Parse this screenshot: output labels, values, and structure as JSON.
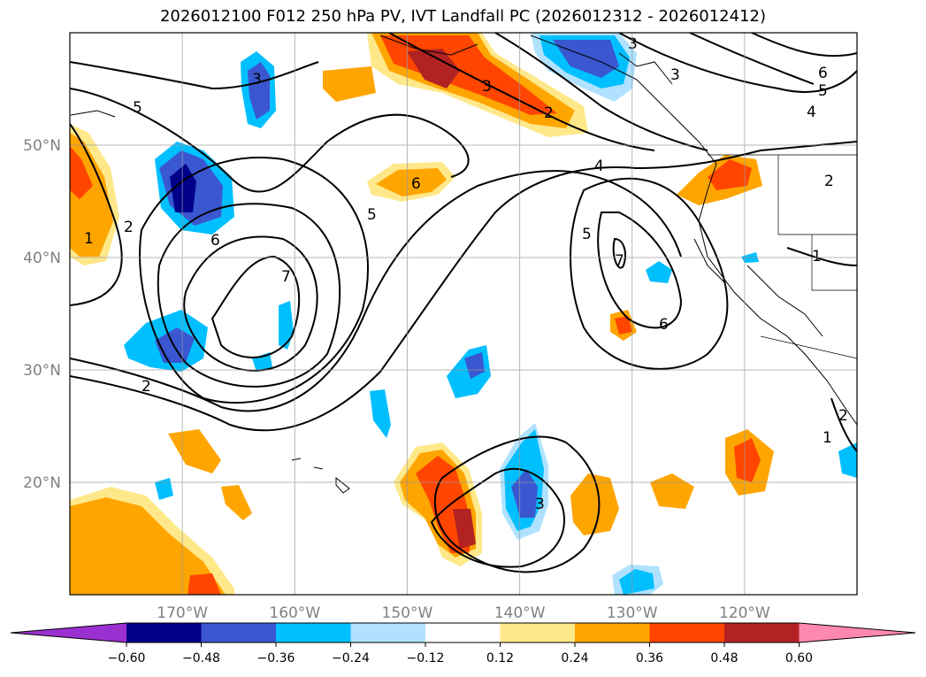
{
  "title": "2026012100 F012 250 hPa PV, IVT Landfall PC (2026012312 - 2026012412)",
  "map": {
    "lat_ticks": [
      {
        "label": "50°N",
        "lat": 50
      },
      {
        "label": "40°N",
        "lat": 40
      },
      {
        "label": "30°N",
        "lat": 30
      },
      {
        "label": "20°N",
        "lat": 20
      }
    ],
    "lon_ticks": [
      {
        "label": "170°W",
        "lon": -170
      },
      {
        "label": "160°W",
        "lon": -160
      },
      {
        "label": "150°W",
        "lon": -150
      },
      {
        "label": "140°W",
        "lon": -140
      },
      {
        "label": "130°W",
        "lon": -130
      },
      {
        "label": "120°W",
        "lon": -120
      }
    ],
    "extent": {
      "lon_min": -180,
      "lon_max": -110,
      "lat_min": 10,
      "lat_max": 60
    },
    "contour_labels": [
      "3",
      "3",
      "3",
      "2",
      "5",
      "6",
      "5",
      "4",
      "5",
      "7",
      "6",
      "2",
      "1",
      "2",
      "7",
      "6",
      "5",
      "4",
      "2",
      "1",
      "3",
      "1",
      "2",
      "6",
      "3"
    ]
  },
  "colorbar": {
    "colors": [
      "#9b30d0",
      "#00008b",
      "#3a57d0",
      "#00bfff",
      "#b0e2ff",
      "#ffffff",
      "#ffe88a",
      "#ffa500",
      "#ff4500",
      "#b22222",
      "#ff88b0"
    ],
    "tick_labels": [
      "−0.60",
      "−0.48",
      "−0.36",
      "−0.24",
      "−0.12",
      "0.12",
      "0.24",
      "0.36",
      "0.48",
      "0.60"
    ]
  }
}
